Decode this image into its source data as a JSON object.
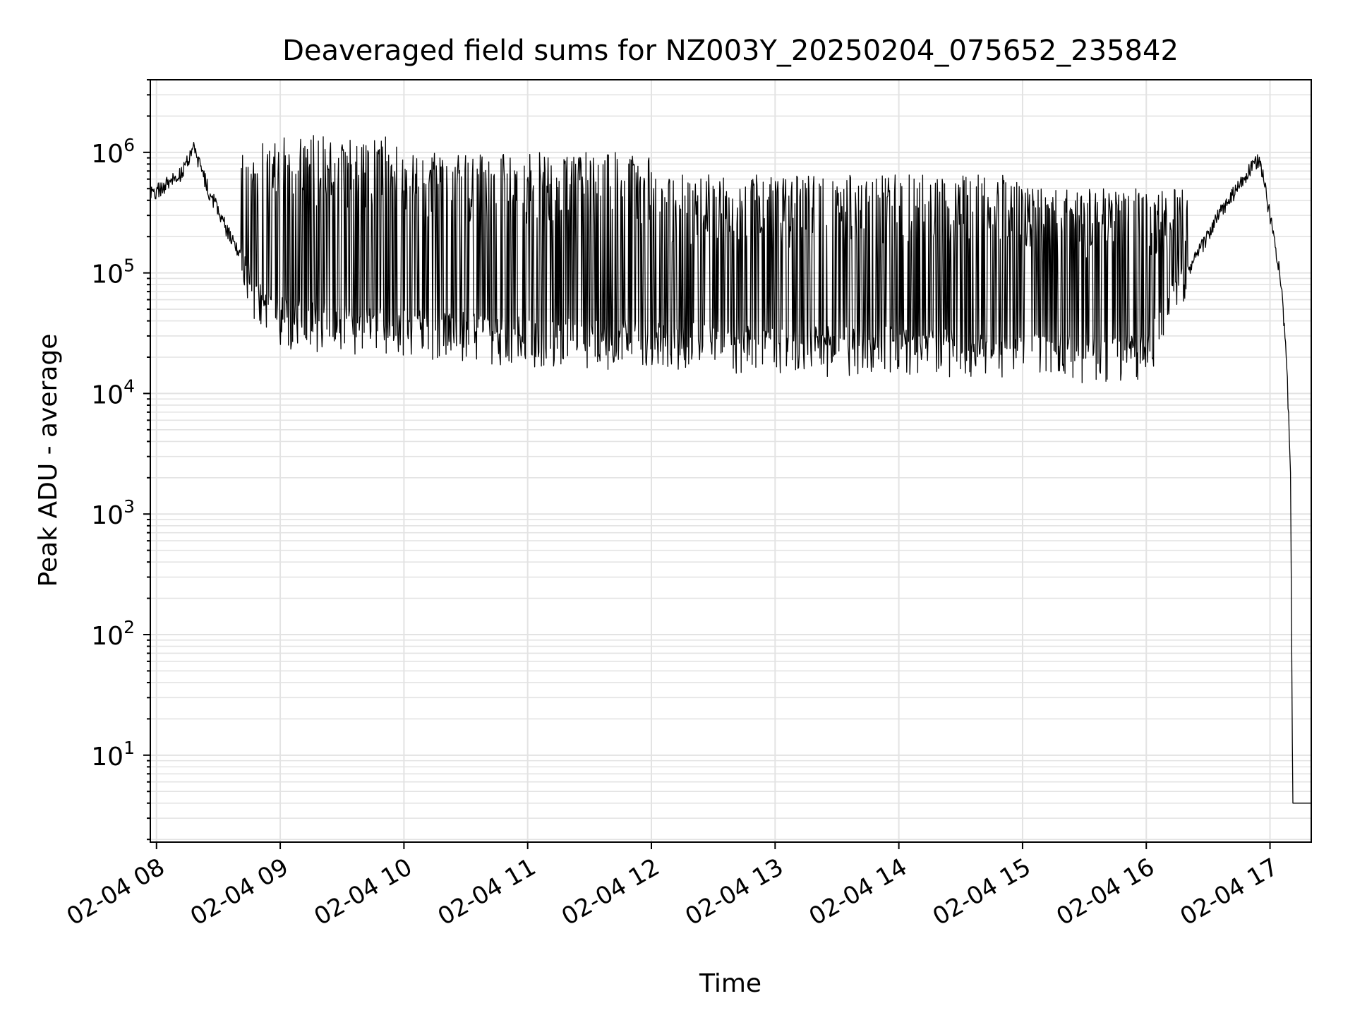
{
  "chart_data": {
    "type": "line",
    "title": "Deaveraged field sums for NZ003Y_20250204_075652_235842",
    "xlabel": "Time",
    "ylabel": "Peak ADU - average",
    "y_scale": "log",
    "ylim": [
      1.9,
      4000000
    ],
    "xlim": [
      "2025-02-04 07:57",
      "2025-02-04 17:20"
    ],
    "grid": true,
    "grid_color": "#e3e3e3",
    "line_color": "#000000",
    "x_ticks": [
      {
        "value": "2025-02-04 08:00",
        "label": "02-04 08"
      },
      {
        "value": "2025-02-04 09:00",
        "label": "02-04 09"
      },
      {
        "value": "2025-02-04 10:00",
        "label": "02-04 10"
      },
      {
        "value": "2025-02-04 11:00",
        "label": "02-04 11"
      },
      {
        "value": "2025-02-04 12:00",
        "label": "02-04 12"
      },
      {
        "value": "2025-02-04 13:00",
        "label": "02-04 13"
      },
      {
        "value": "2025-02-04 14:00",
        "label": "02-04 14"
      },
      {
        "value": "2025-02-04 15:00",
        "label": "02-04 15"
      },
      {
        "value": "2025-02-04 16:00",
        "label": "02-04 16"
      },
      {
        "value": "2025-02-04 17:00",
        "label": "02-04 17"
      }
    ],
    "y_ticks": [
      {
        "value": 10,
        "base": "10",
        "exp": "1"
      },
      {
        "value": 100,
        "base": "10",
        "exp": "2"
      },
      {
        "value": 1000,
        "base": "10",
        "exp": "3"
      },
      {
        "value": 10000,
        "base": "10",
        "exp": "4"
      },
      {
        "value": 100000,
        "base": "10",
        "exp": "5"
      },
      {
        "value": 1000000,
        "base": "10",
        "exp": "6"
      }
    ],
    "series": [
      {
        "values": [
          {
            "x": "2025-02-04 07:57",
            "y": 450000
          },
          {
            "x": "2025-02-04 08:05",
            "y": 550000
          },
          {
            "x": "2025-02-04 08:13",
            "y": 700000
          },
          {
            "x": "2025-02-04 08:18",
            "y": 1100000
          },
          {
            "x": "2025-02-04 08:25",
            "y": 500000
          },
          {
            "x": "2025-02-04 08:33",
            "y": 250000
          },
          {
            "x": "2025-02-04 08:40",
            "y": 150000
          },
          {
            "x": "2025-02-04 08:48",
            "y": 70000
          },
          {
            "x": "2025-02-04 08:55",
            "y": 45000
          },
          {
            "x": "2025-02-04 09:15",
            "y": 40000
          },
          {
            "x": "2025-02-04 10:00",
            "y": 35000
          },
          {
            "x": "2025-02-04 11:00",
            "y": 30000
          },
          {
            "x": "2025-02-04 12:00",
            "y": 28000
          },
          {
            "x": "2025-02-04 13:00",
            "y": 25000
          },
          {
            "x": "2025-02-04 14:00",
            "y": 25000
          },
          {
            "x": "2025-02-04 15:00",
            "y": 22000
          },
          {
            "x": "2025-02-04 16:00",
            "y": 22000
          },
          {
            "x": "2025-02-04 16:20",
            "y": 100000
          },
          {
            "x": "2025-02-04 16:35",
            "y": 300000
          },
          {
            "x": "2025-02-04 16:50",
            "y": 700000
          },
          {
            "x": "2025-02-04 16:55",
            "y": 900000
          },
          {
            "x": "2025-02-04 17:00",
            "y": 300000
          },
          {
            "x": "2025-02-04 17:05",
            "y": 100000
          },
          {
            "x": "2025-02-04 17:08",
            "y": 20000
          },
          {
            "x": "2025-02-04 17:10",
            "y": 2000
          },
          {
            "x": "2025-02-04 17:11",
            "y": 4
          },
          {
            "x": "2025-02-04 17:20",
            "y": 4
          }
        ]
      }
    ]
  }
}
